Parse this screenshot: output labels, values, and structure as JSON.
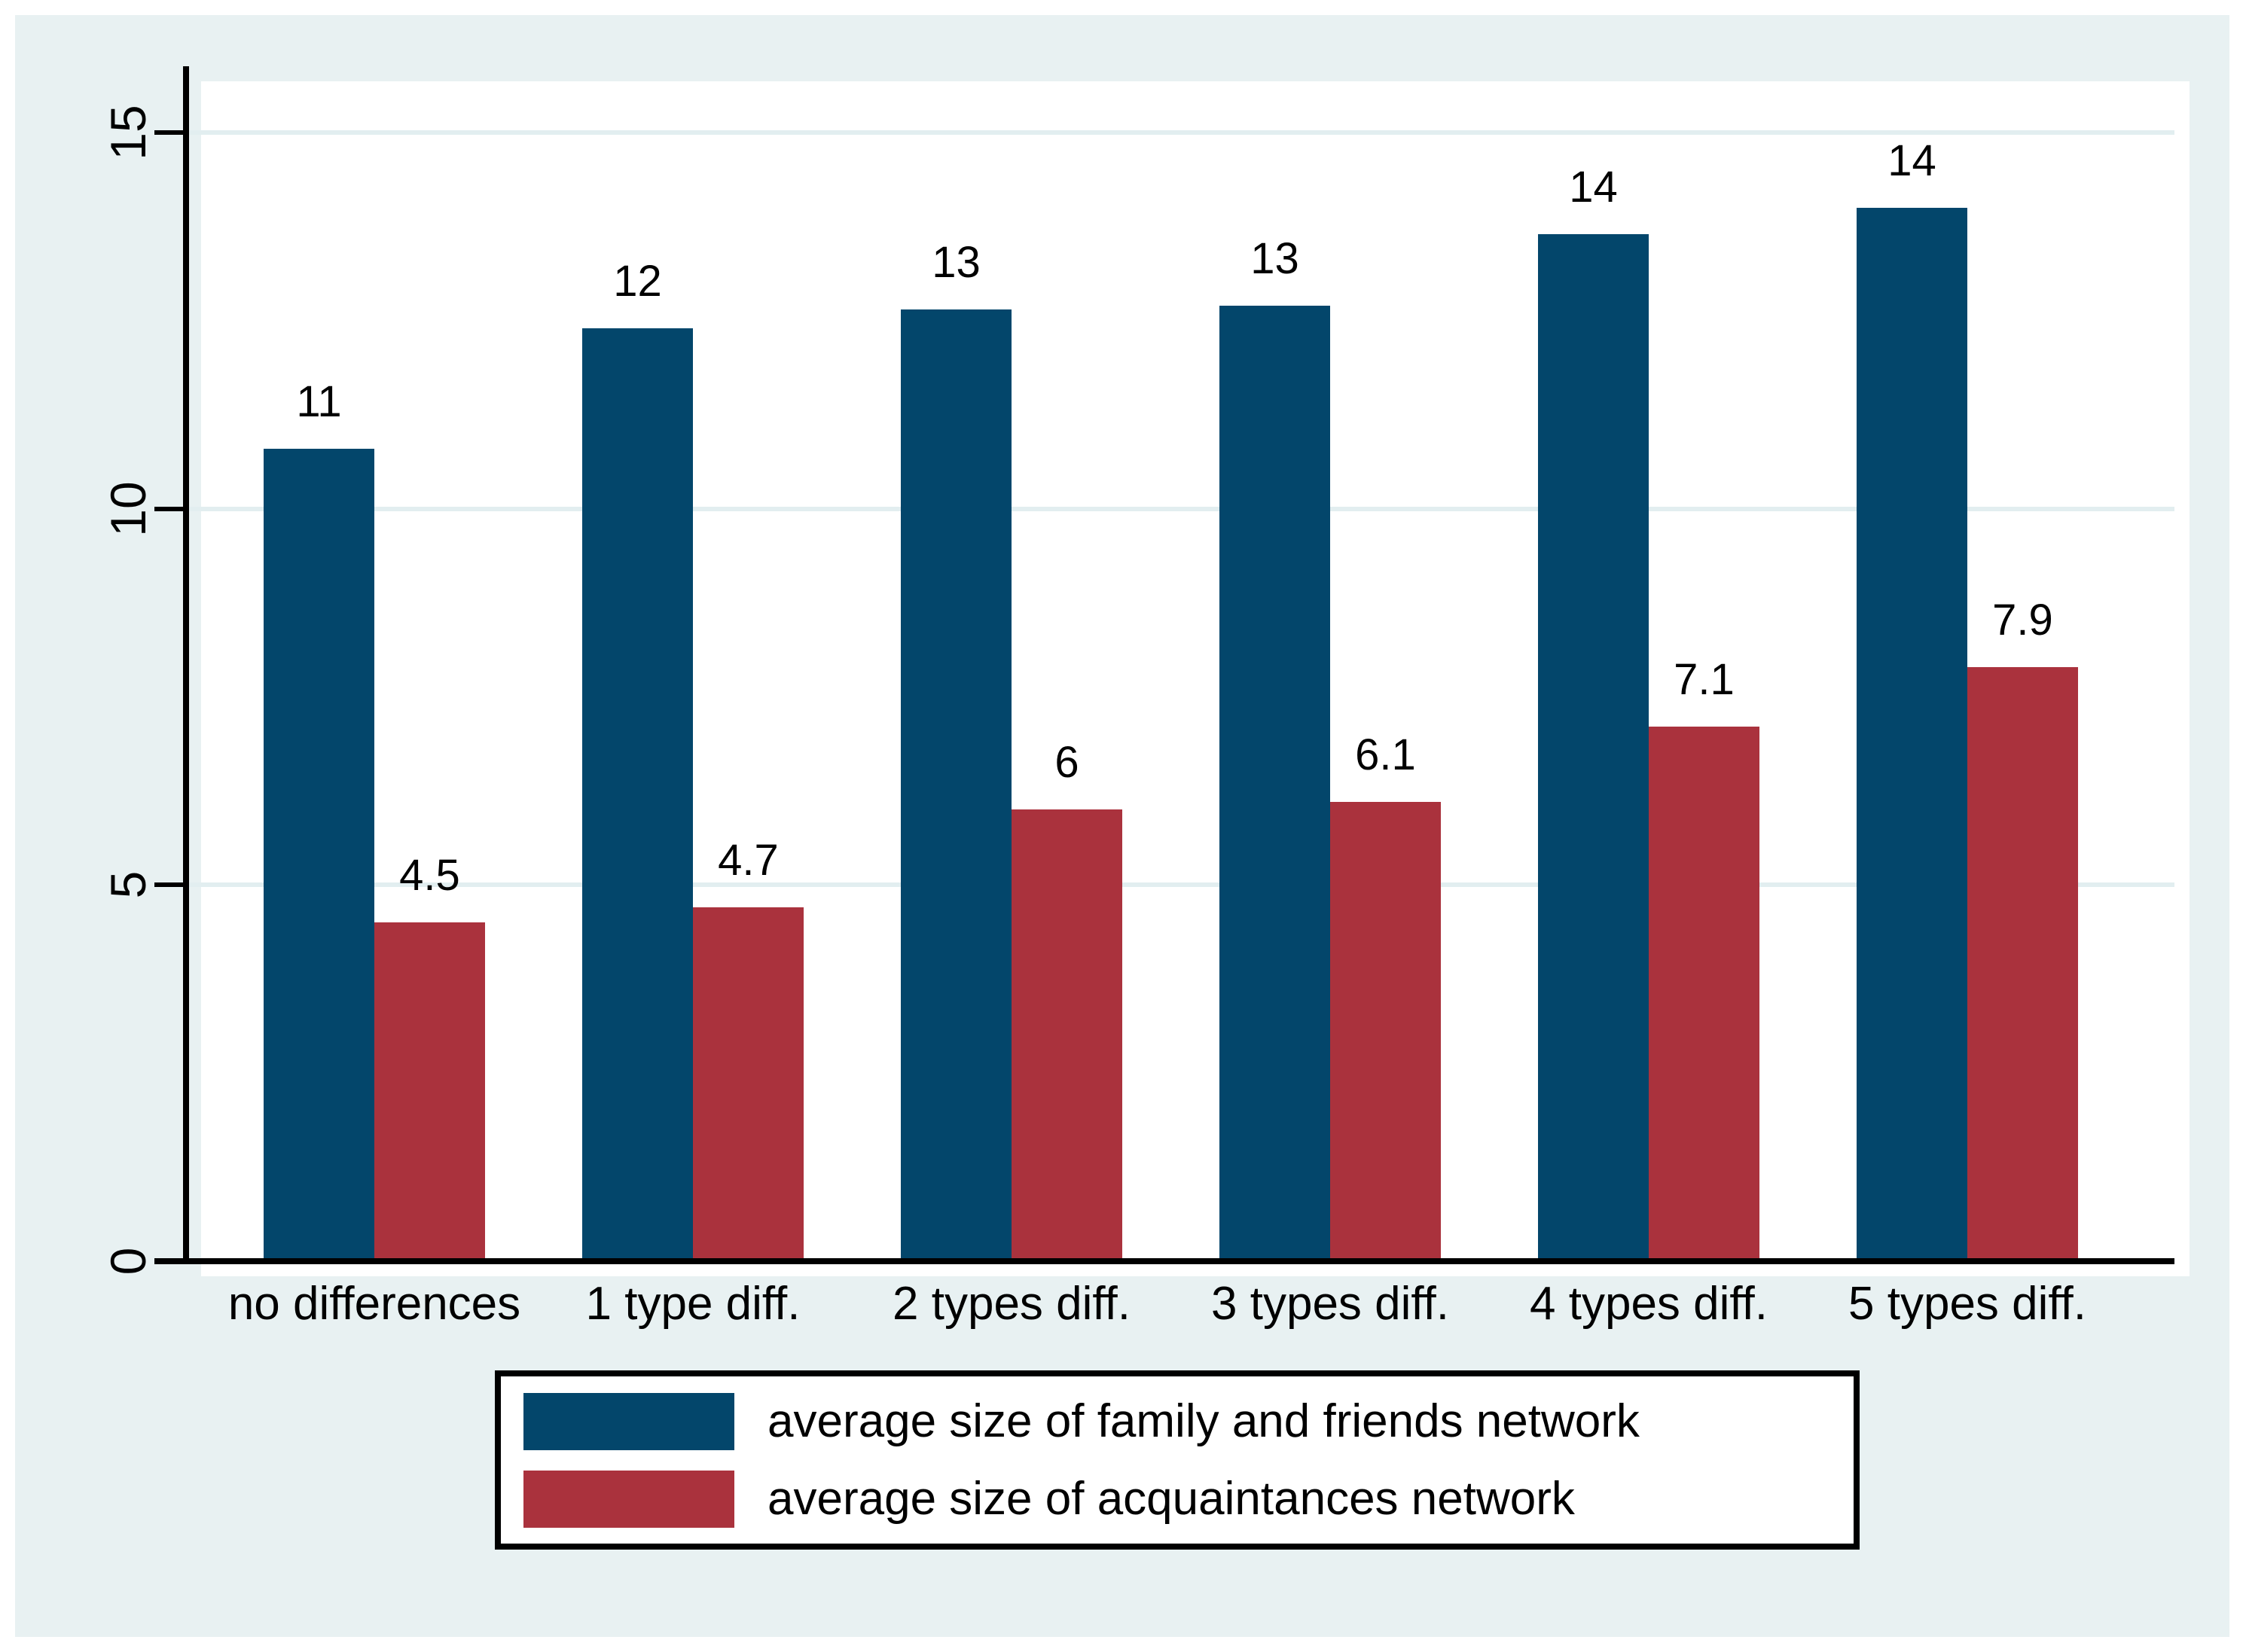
{
  "chart_data": {
    "type": "bar",
    "title": "",
    "xlabel": "",
    "ylabel": "",
    "categories": [
      "no differences",
      "1 type diff.",
      "2 types diff.",
      "3 types diff.",
      "4 types diff.",
      "5 types diff."
    ],
    "series": [
      {
        "key": "family-friends",
        "name": "average size of family and friends network",
        "color": "#03466b",
        "values": [
          10.8,
          12.4,
          12.65,
          12.7,
          13.65,
          14.0
        ],
        "labels": [
          "11",
          "12",
          "13",
          "13",
          "14",
          "14"
        ]
      },
      {
        "key": "acquaintances",
        "name": "average size of acquaintances network",
        "color": "#aa323d",
        "values": [
          4.5,
          4.7,
          6.0,
          6.1,
          7.1,
          7.9
        ],
        "labels": [
          "4.5",
          "4.7",
          "6",
          "6.1",
          "7.1",
          "7.9"
        ]
      }
    ],
    "yticks": [
      0,
      5,
      10,
      15
    ],
    "ytick_labels": [
      "0",
      "5",
      "10",
      "15"
    ],
    "ylim": [
      0,
      15.9
    ],
    "grid": true,
    "gridline_color": "#e2eef0",
    "plot_background": "#ffffff",
    "outer_background": "#e8f1f2",
    "legend_position": "bottom"
  }
}
